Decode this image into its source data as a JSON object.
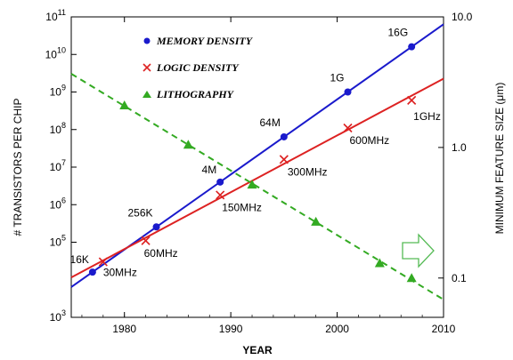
{
  "chart_data": {
    "type": "line",
    "xlabel": "YEAR",
    "ylabel": "# TRANSISTORS PER CHIP",
    "y2label": "MINIMUM FEATURE SIZE (μm)",
    "xlim": [
      1975,
      2010
    ],
    "xticks": [
      "1980",
      "1990",
      "2000",
      "2010"
    ],
    "ylim_log10": [
      3,
      11
    ],
    "yticks": [
      {
        "base": "10",
        "exp": "3"
      },
      {
        "base": "10",
        "exp": "5"
      },
      {
        "base": "10",
        "exp": "6"
      },
      {
        "base": "10",
        "exp": "7"
      },
      {
        "base": "10",
        "exp": "8"
      },
      {
        "base": "10",
        "exp": "9"
      },
      {
        "base": "10",
        "exp": "10"
      },
      {
        "base": "10",
        "exp": "11"
      }
    ],
    "y2lim": [
      0.05,
      10.0
    ],
    "y2ticks": [
      "10.0",
      "1.0",
      "0.1"
    ],
    "legend_position": "top-left",
    "series": [
      {
        "name": "MEMORY DENSITY",
        "color": "#1a1acc",
        "marker": "circle",
        "axis": "left",
        "line_style": "solid",
        "x": [
          1977,
          1983,
          1989,
          1995,
          2001,
          2007
        ],
        "y": [
          16000.0,
          256000.0,
          4000000.0,
          64000000.0,
          1000000000.0,
          16000000000.0
        ],
        "labels": [
          "16K",
          "256K",
          "4M",
          "64M",
          "1G",
          "16G"
        ]
      },
      {
        "name": "LOGIC DENSITY",
        "color": "#dd2222",
        "marker": "x",
        "axis": "left",
        "line_style": "solid",
        "x": [
          1978,
          1982,
          1989,
          1995,
          2001,
          2007
        ],
        "y": [
          30000.0,
          110000.0,
          1800000.0,
          16000000.0,
          110000000.0,
          600000000.0
        ],
        "labels": [
          "30MHz",
          "60MHz",
          "150MHz",
          "300MHz",
          "600MHz",
          "1GHz"
        ]
      },
      {
        "name": "LITHOGRAPHY",
        "color": "#33aa22",
        "marker": "triangle",
        "axis": "right",
        "line_style": "dashed",
        "x": [
          1980,
          1986,
          1992,
          1998,
          2004,
          2007
        ],
        "y": [
          2.1,
          1.05,
          0.52,
          0.27,
          0.13,
          0.1
        ]
      }
    ]
  }
}
